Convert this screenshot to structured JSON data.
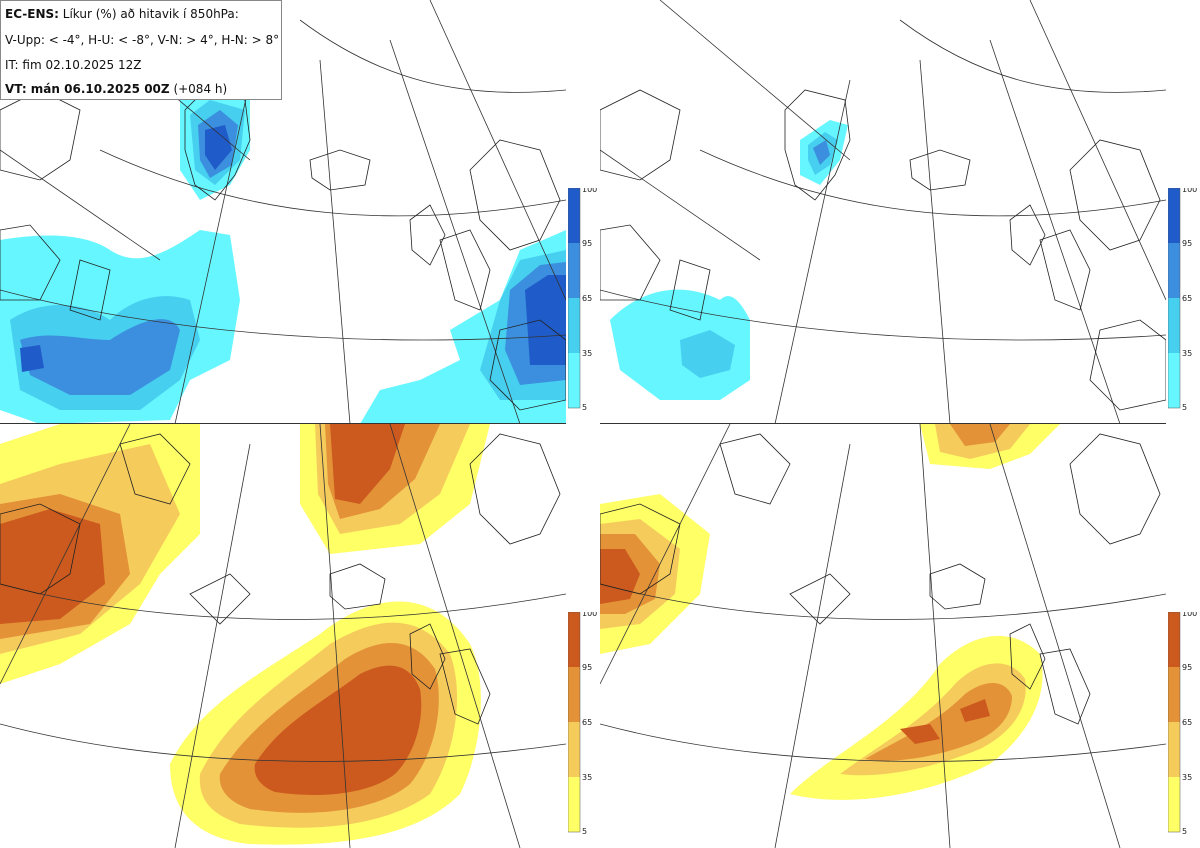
{
  "info": {
    "model": "EC-ENS:",
    "title": "Líkur (%) að hitavik í 850hPa:",
    "legend_line": "V-Upp: < -4°, H-U: < -8°, V-N: > 4°, H-N: > 8°",
    "initial_time": "IT: fim 02.10.2025 12Z",
    "valid_label": "VT: mán 06.10.2025 00Z",
    "lead": "(+084 h)"
  },
  "panels": [
    {
      "id": "V-Upp",
      "description": "cold anomaly < -4°",
      "palette": "blue"
    },
    {
      "id": "H-U",
      "description": "cold anomaly < -8°",
      "palette": "blue"
    },
    {
      "id": "V-N",
      "description": "warm anomaly > 4°",
      "palette": "orange"
    },
    {
      "id": "H-N",
      "description": "warm anomaly > 8°",
      "palette": "orange"
    }
  ],
  "colorbar_ticks": [
    "100",
    "95",
    "65",
    "35",
    "5"
  ],
  "colors": {
    "blue": [
      "#66f6ff",
      "#47cfef",
      "#3b8fde",
      "#1f5bc9"
    ],
    "orange": [
      "#ffff66",
      "#f5cb5c",
      "#e39237",
      "#cc5a1e"
    ],
    "coast": "#222222",
    "grid": "#333333"
  }
}
